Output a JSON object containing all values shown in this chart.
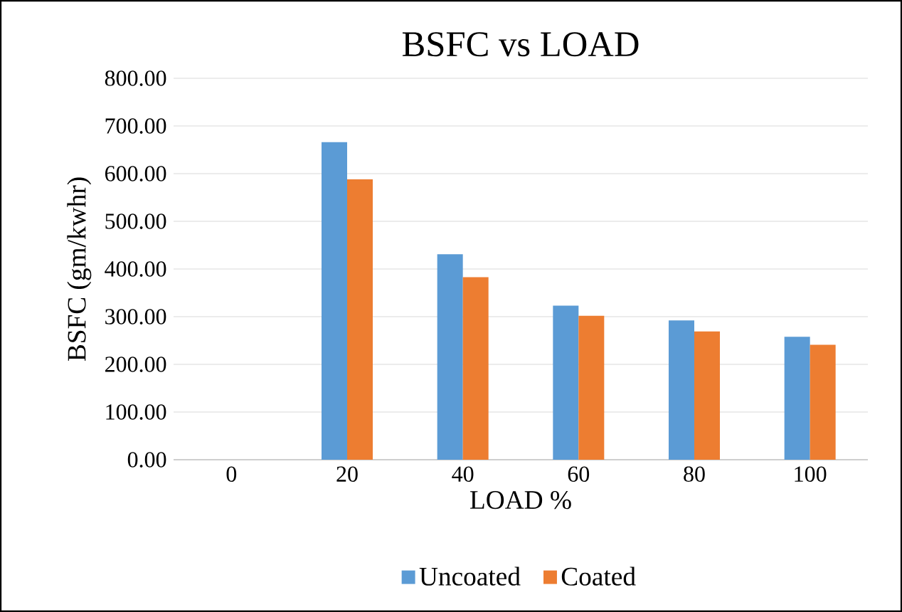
{
  "chart_data": {
    "type": "bar",
    "title": "BSFC vs LOAD",
    "xlabel": "LOAD %",
    "ylabel": "BSFC (gm/kwhr)",
    "categories": [
      "0",
      "20",
      "40",
      "60",
      "80",
      "100"
    ],
    "series": [
      {
        "name": "Uncoated",
        "color": "#5b9bd5",
        "values": [
          0,
          666,
          431,
          323,
          292,
          258
        ]
      },
      {
        "name": "Coated",
        "color": "#ed7d31",
        "values": [
          0,
          588,
          383,
          302,
          269,
          241
        ]
      }
    ],
    "ylim": [
      0,
      800
    ],
    "yticks": [
      {
        "value": 0,
        "label": "0.00"
      },
      {
        "value": 100,
        "label": "100.00"
      },
      {
        "value": 200,
        "label": "200.00"
      },
      {
        "value": 300,
        "label": "300.00"
      },
      {
        "value": 400,
        "label": "400.00"
      },
      {
        "value": 500,
        "label": "500.00"
      },
      {
        "value": 600,
        "label": "600.00"
      },
      {
        "value": 700,
        "label": "700.00"
      },
      {
        "value": 800,
        "label": "800.00"
      }
    ],
    "grid": "y",
    "legend": "bottom"
  }
}
